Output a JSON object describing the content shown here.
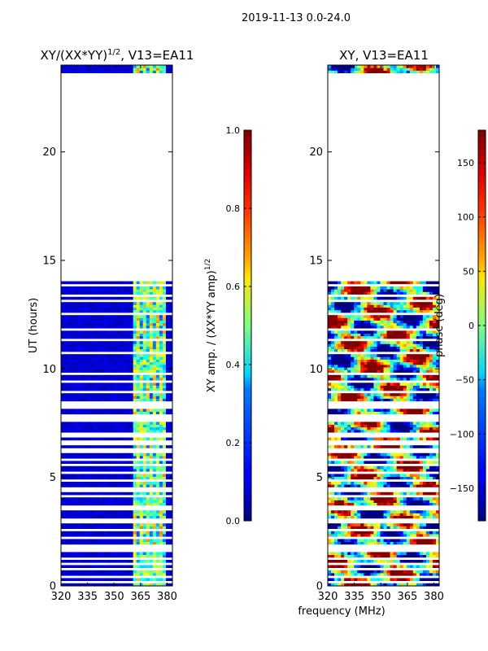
{
  "figure": {
    "suptitle": "2019-11-13 0.0-24.0",
    "shared_xlabel": "frequency (MHz)"
  },
  "chart_data": [
    {
      "type": "heatmap",
      "title": "XY/(XX*YY)^{1/2}, V13=EA11",
      "title_main": "XY/(XX*YY)",
      "title_sup": "1/2",
      "title_tail": ", V13=EA11",
      "xlabel": "frequency (MHz)",
      "ylabel": "UT (hours)",
      "xlim": [
        320,
        383
      ],
      "ylim": [
        0,
        24
      ],
      "xticks": [
        320,
        335,
        350,
        365,
        380
      ],
      "yticks": [
        0,
        5,
        10,
        15,
        20
      ],
      "high_signal_band_mhz": [
        360,
        380
      ],
      "colorbar": {
        "label_main": "XY amp. / (XX*YY amp)",
        "label_sup": "1/2",
        "range": [
          0.0,
          1.0
        ],
        "ticks": [
          "0.0",
          "0.2",
          "0.4",
          "0.6",
          "0.8",
          "1.0"
        ],
        "tick_values": [
          0,
          0.2,
          0.4,
          0.6,
          0.8,
          1.0
        ]
      }
    },
    {
      "type": "heatmap",
      "title": "XY, V13=EA11",
      "xlabel": "frequency (MHz)",
      "ylabel": "",
      "xlim": [
        320,
        383
      ],
      "ylim": [
        0,
        24
      ],
      "xticks": [
        320,
        335,
        350,
        365,
        380
      ],
      "yticks": [
        0,
        5,
        10,
        15,
        20
      ],
      "colorbar": {
        "label": "phase (deg)",
        "range": [
          -180,
          180
        ],
        "ticks": [
          "150",
          "100",
          "50",
          "0",
          "−50",
          "−100",
          "−150"
        ],
        "tick_values": [
          150,
          100,
          50,
          0,
          -50,
          -100,
          -150
        ]
      }
    }
  ],
  "data_gaps_hours": [
    [
      14.0,
      23.6
    ],
    [
      12.45,
      12.65
    ],
    [
      8.85,
      9.05
    ],
    [
      6.5,
      6.75
    ],
    [
      4.8,
      4.95
    ],
    [
      4.35,
      4.55
    ],
    [
      2.9,
      3.1
    ],
    [
      1.2,
      1.35
    ],
    [
      0.4,
      0.5
    ]
  ],
  "thin_flag_lines_hours": [
    13.9,
    13.4,
    13.1,
    12.95,
    11.8,
    11.3,
    10.7,
    10.2,
    9.8,
    9.4,
    8.75,
    8.5,
    8.35,
    8.2,
    8.05,
    7.9,
    7.75,
    7.6,
    7.45,
    7.2,
    7.0,
    6.9,
    6.3,
    6.15,
    6.0,
    5.8,
    5.55,
    5.25,
    5.05,
    4.1,
    3.85,
    3.7,
    3.55,
    3.35,
    2.6,
    2.4,
    2.2,
    2.05,
    1.9,
    1.75,
    1.6,
    1.45,
    1.05,
    0.8,
    0.6,
    0.2
  ],
  "top_data_strip_hours": [
    23.6,
    24.0
  ]
}
